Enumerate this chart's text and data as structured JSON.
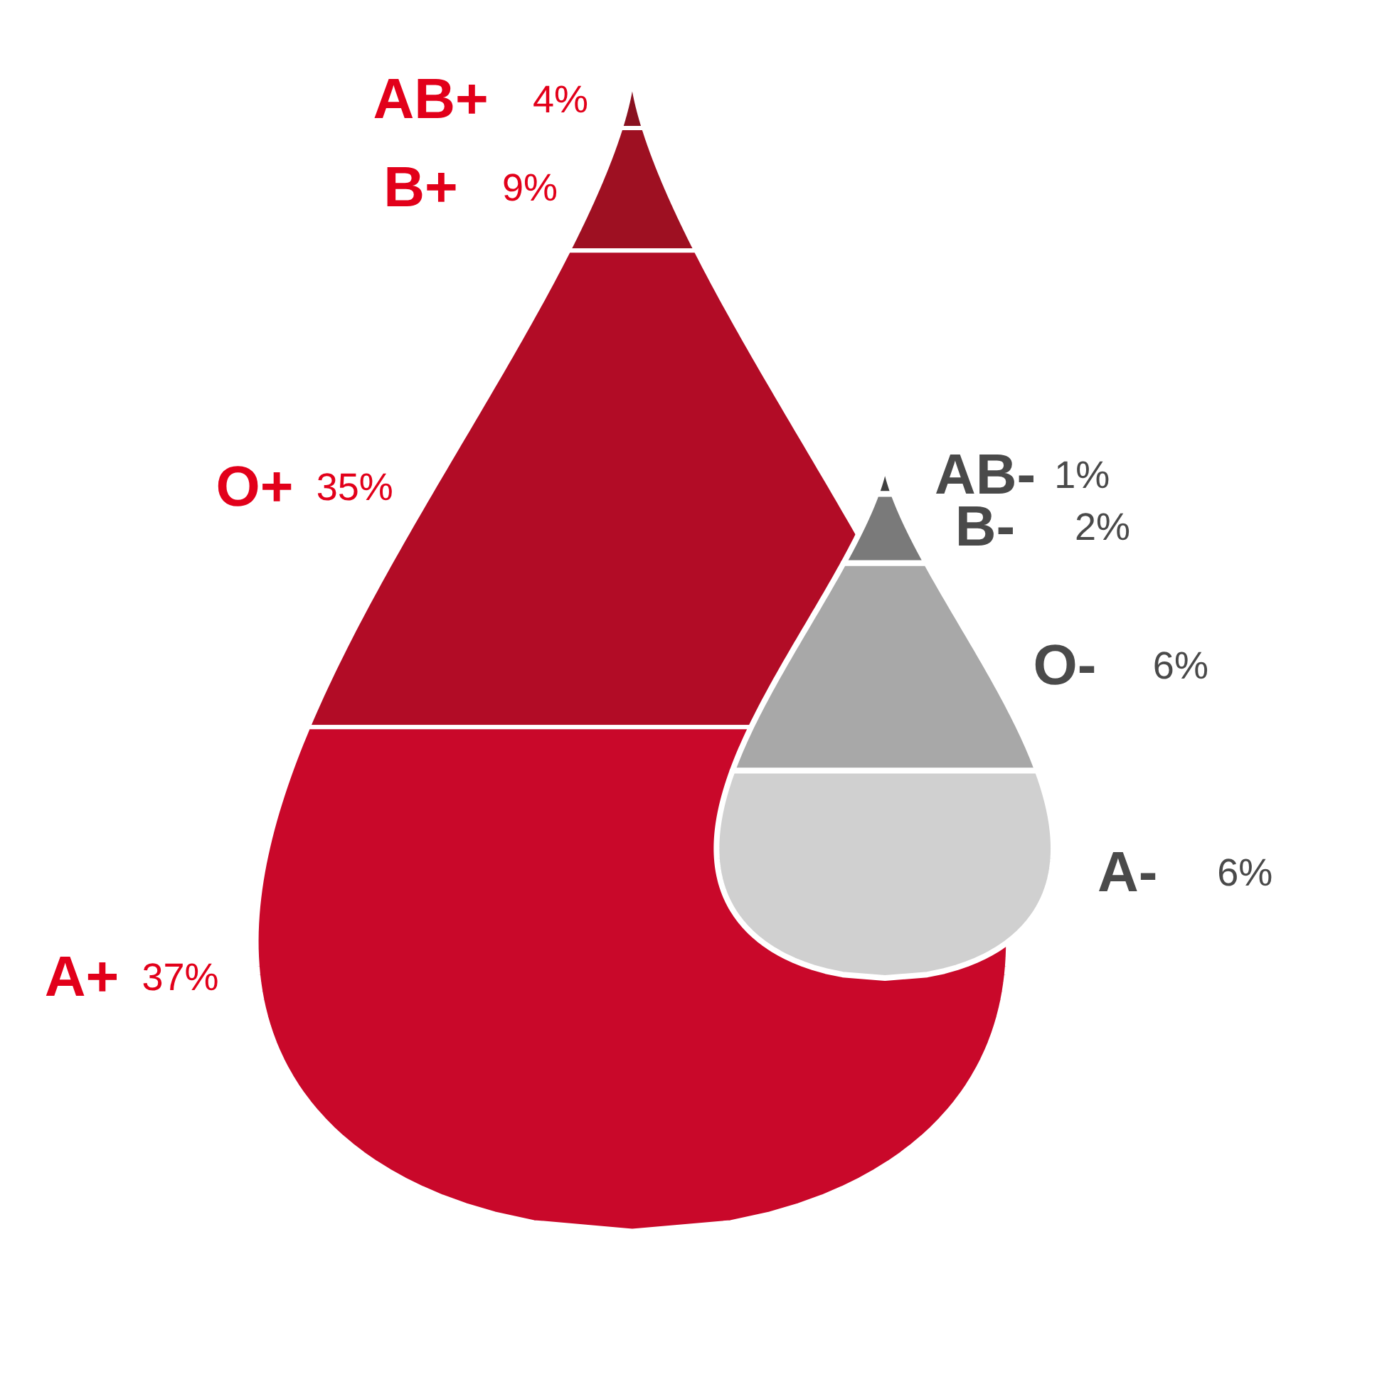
{
  "chart_data": {
    "type": "other",
    "categories": [
      "AB+",
      "B+",
      "O+",
      "A+",
      "AB-",
      "B-",
      "O-",
      "A-"
    ],
    "colors": [
      "#8a1120",
      "#9e1022",
      "#b20c26",
      "#c9082a",
      "#404040",
      "#7a7a7a",
      "#a8a8a8",
      "#d0d0d0"
    ],
    "series": [
      {
        "color": "#e2001a",
        "values": [
          4,
          9,
          35,
          37,
          null,
          null,
          null,
          null
        ],
        "value_labels": [
          "4%",
          "9%",
          "35%",
          "37%",
          null,
          null,
          null,
          null
        ]
      },
      {
        "color": "#4a4a4a",
        "values": [
          null,
          null,
          null,
          null,
          1,
          2,
          6,
          6
        ],
        "value_labels": [
          null,
          null,
          null,
          null,
          "1%",
          "2%",
          "6%",
          "6%"
        ]
      }
    ]
  }
}
